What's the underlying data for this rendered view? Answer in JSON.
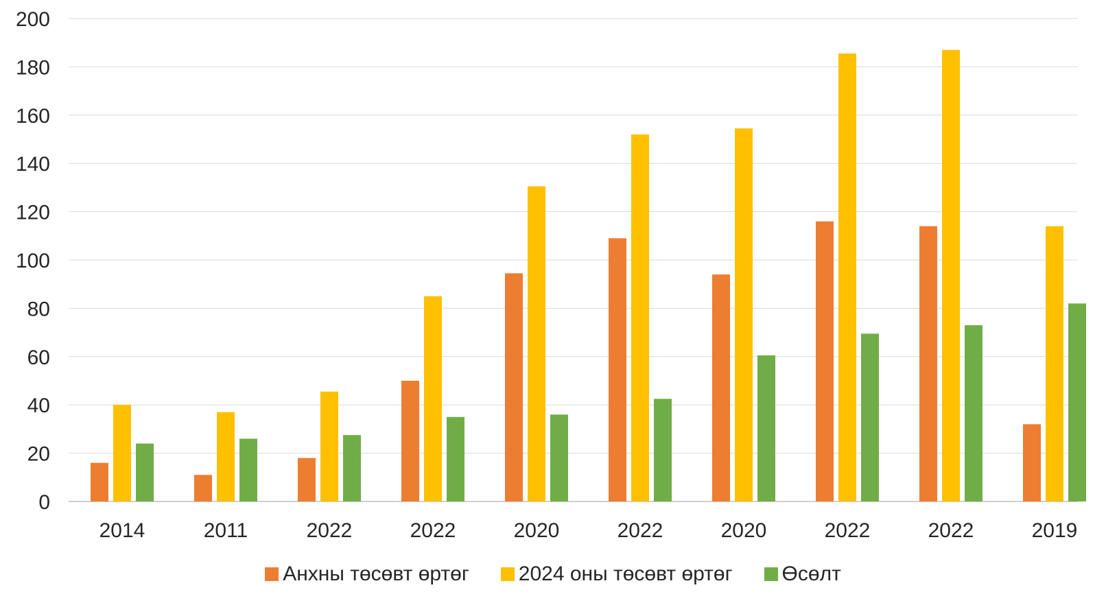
{
  "chart_data": {
    "type": "bar",
    "categories": [
      "2014",
      "2011",
      "2022",
      "2022",
      "2020",
      "2022",
      "2020",
      "2022",
      "2022",
      "2019"
    ],
    "series": [
      {
        "name": "Анхны төсөвт өртөг",
        "color": "#ED7D31",
        "values": [
          16,
          11,
          18,
          50,
          94.5,
          109,
          94,
          116,
          114,
          32
        ]
      },
      {
        "name": "2024 оны төсөвт өртөг",
        "color": "#FFC000",
        "values": [
          40,
          37,
          45.5,
          85,
          130.5,
          152,
          154.5,
          185.5,
          187,
          114
        ]
      },
      {
        "name": "Өсөлт",
        "color": "#70AD47",
        "values": [
          24,
          26,
          27.5,
          35,
          36,
          42.5,
          60.5,
          69.5,
          73,
          82
        ]
      }
    ],
    "y_ticks": [
      "0",
      "20",
      "40",
      "60",
      "80",
      "100",
      "120",
      "140",
      "160",
      "180",
      "200"
    ],
    "ylim": [
      0,
      200
    ],
    "grid": true,
    "legend_position": "bottom",
    "title": "",
    "xlabel": "",
    "ylabel": ""
  }
}
